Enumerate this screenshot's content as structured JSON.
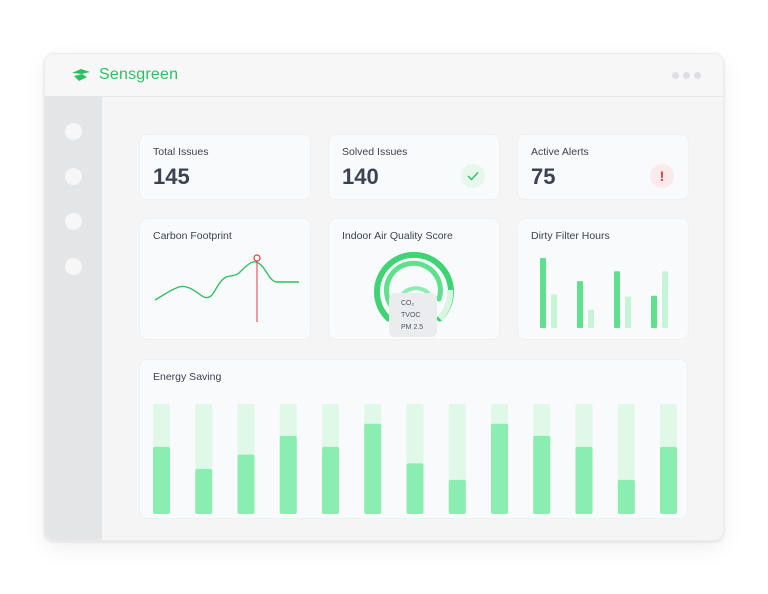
{
  "app": {
    "brand": "Sensgreen"
  },
  "colors": {
    "accent": "#2fbf63",
    "bar": "#8aeeb0",
    "bar_track": "#dff8e8",
    "alert": "#e0393e"
  },
  "sidebar": {
    "items": [
      {
        "icon": "nav-dot"
      },
      {
        "icon": "nav-dot"
      },
      {
        "icon": "nav-dot"
      },
      {
        "icon": "nav-dot"
      }
    ]
  },
  "stats": {
    "total_issues": {
      "label": "Total Issues",
      "value": "145"
    },
    "solved_issues": {
      "label": "Solved Issues",
      "value": "140",
      "icon": "check-icon"
    },
    "active_alerts": {
      "label": "Active Alerts",
      "value": "75",
      "icon": "exclamation-icon"
    }
  },
  "carbon": {
    "title": "Carbon Footprint"
  },
  "air_quality": {
    "title": "Indoor Air Quality Score",
    "legend": [
      "CO₂",
      "TVOC",
      "PM 2.5"
    ]
  },
  "dirty_filter": {
    "title": "Dirty Filter Hours"
  },
  "energy": {
    "title": "Energy Saving"
  },
  "chart_data": [
    {
      "type": "bar",
      "title": "Dirty Filter Hours",
      "series": [
        {
          "values": [
            1.0,
            0.67,
            0.81,
            0.46
          ]
        },
        {
          "values": [
            0.48,
            0.26,
            0.45,
            0.81
          ]
        }
      ]
    },
    {
      "type": "bar",
      "title": "Energy Saving",
      "values": [
        0.61,
        0.41,
        0.54,
        0.71,
        0.61,
        0.82,
        0.46,
        0.31,
        0.82,
        0.71,
        0.61,
        0.31,
        0.61
      ],
      "ylim": [
        0,
        1
      ]
    }
  ]
}
